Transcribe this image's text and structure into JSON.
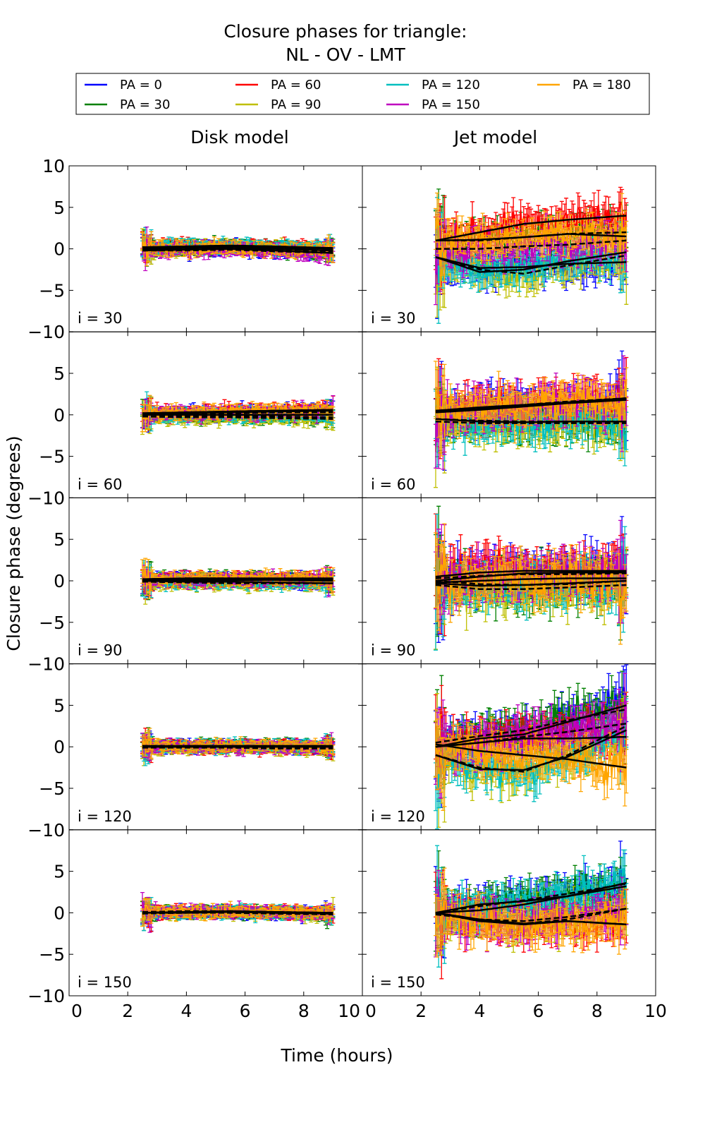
{
  "chart_data": {
    "type": "line",
    "title": [
      "Closure phases for triangle:",
      "NL - OV - LMT"
    ],
    "xlabel": "Time (hours)",
    "ylabel": "Closure phase (degrees)",
    "columns": [
      "Disk model",
      "Jet model"
    ],
    "xlim": [
      0,
      10
    ],
    "ylim": [
      -10,
      10
    ],
    "xticks": [
      0,
      2,
      4,
      6,
      8,
      10
    ],
    "yticks": [
      -10,
      -5,
      0,
      5,
      10
    ],
    "legend": {
      "placement": "top",
      "entries": [
        {
          "label": "PA = 0",
          "color": "#0000ff"
        },
        {
          "label": "PA = 30",
          "color": "#008000"
        },
        {
          "label": "PA = 60",
          "color": "#ff0000"
        },
        {
          "label": "PA = 90",
          "color": "#bfbf00"
        },
        {
          "label": "PA = 120",
          "color": "#00bfbf"
        },
        {
          "label": "PA = 150",
          "color": "#bf00bf"
        },
        {
          "label": "PA = 180",
          "color": "#ffa500"
        }
      ]
    },
    "time_range": [
      2.5,
      9.0
    ],
    "model_knots_x": [
      2.5,
      4,
      5.5,
      7,
      9
    ],
    "rows": [
      {
        "label": "i = 30",
        "disk": {
          "noise": 0.8,
          "models": [
            [
              -0.2,
              -0.1,
              0,
              -0.2,
              -0.5
            ],
            [
              0,
              0.2,
              0.3,
              0.1,
              -0.3
            ],
            [
              0.2,
              0.3,
              0.3,
              0.2,
              0
            ],
            [
              -0.1,
              0,
              0.1,
              0,
              -0.3
            ],
            [
              0.1,
              0.3,
              0.4,
              0.3,
              0.1
            ],
            [
              -0.2,
              -0.2,
              -0.1,
              -0.3,
              -0.5
            ],
            [
              0,
              0.1,
              0.2,
              0,
              -0.2
            ]
          ]
        },
        "jet": {
          "noise": 2.2,
          "models": [
            [
              -1,
              -2.3,
              -2.2,
              -1.8,
              -1.6
            ],
            [
              1,
              1,
              1.4,
              1.8,
              2
            ],
            [
              1,
              2,
              3,
              3.5,
              4
            ],
            [
              -1,
              -2.5,
              -3,
              -2,
              -0.8
            ],
            [
              -1,
              -2.8,
              -2.5,
              -1.5,
              -0.4
            ],
            [
              0,
              0,
              0.3,
              0.5,
              1
            ],
            [
              1,
              1.1,
              1.4,
              1.8,
              1.5
            ]
          ]
        }
      },
      {
        "label": "i = 60",
        "disk": {
          "noise": 0.8,
          "models": [
            [
              0,
              0.2,
              0.3,
              0.4,
              0.5
            ],
            [
              0,
              -0.1,
              -0.1,
              -0.2,
              -0.3
            ],
            [
              0.1,
              0.3,
              0.4,
              0.5,
              0.6
            ],
            [
              -0.2,
              -0.3,
              -0.3,
              -0.4,
              -0.5
            ],
            [
              0,
              0,
              0,
              0,
              0
            ],
            [
              0.1,
              0.2,
              0.2,
              0.3,
              0.3
            ],
            [
              0.2,
              0.3,
              0.4,
              0.5,
              0.6
            ]
          ]
        },
        "jet": {
          "noise": 2.4,
          "models": [
            [
              0.3,
              0.7,
              1.1,
              1.5,
              2
            ],
            [
              -0.5,
              -0.7,
              -0.8,
              -0.8,
              -0.8
            ],
            [
              0.5,
              0.9,
              1.2,
              1.5,
              1.8
            ],
            [
              -0.8,
              -1,
              -1,
              -1,
              -1
            ],
            [
              -0.5,
              -0.8,
              -0.9,
              -0.8,
              -0.8
            ],
            [
              0.4,
              0.8,
              1.2,
              1.6,
              2
            ],
            [
              0.3,
              0.6,
              1,
              1.4,
              1.8
            ]
          ]
        }
      },
      {
        "label": "i = 90",
        "disk": {
          "noise": 0.8,
          "models": [
            [
              0,
              0.2,
              0.2,
              0.1,
              0
            ],
            [
              0.1,
              0.3,
              0.3,
              0.2,
              0.2
            ],
            [
              0,
              0.1,
              0.1,
              0.1,
              0.1
            ],
            [
              -0.1,
              -0.2,
              -0.3,
              -0.3,
              -0.3
            ],
            [
              0,
              -0.1,
              -0.1,
              -0.2,
              -0.3
            ],
            [
              0.1,
              0.2,
              0.2,
              0.2,
              0.2
            ],
            [
              0.2,
              0.3,
              0.3,
              0.3,
              0.3
            ]
          ]
        },
        "jet": {
          "noise": 2.8,
          "models": [
            [
              0,
              0.5,
              0.9,
              1,
              1
            ],
            [
              0,
              -0.4,
              -0.5,
              -0.4,
              0
            ],
            [
              0.5,
              1,
              1.2,
              1.2,
              1.2
            ],
            [
              -0.5,
              -1,
              -1,
              -0.8,
              -0.5
            ],
            [
              -0.3,
              -0.6,
              -0.5,
              -0.3,
              0
            ],
            [
              0.3,
              0.6,
              0.8,
              0.8,
              0.9
            ],
            [
              -0.2,
              0,
              0.2,
              0.3,
              0.3
            ]
          ]
        }
      },
      {
        "label": "i = 120",
        "disk": {
          "noise": 0.7,
          "models": [
            [
              0,
              0.1,
              0.1,
              0,
              0
            ],
            [
              0.1,
              0.1,
              0.1,
              0.1,
              0.1
            ],
            [
              0,
              0,
              0,
              0,
              0
            ],
            [
              -0.1,
              -0.1,
              -0.1,
              -0.2,
              -0.2
            ],
            [
              0,
              0,
              0.1,
              0.1,
              0.1
            ],
            [
              0.1,
              0.1,
              0,
              0,
              0
            ],
            [
              0.1,
              0.1,
              0.1,
              0.1,
              0.1
            ]
          ]
        },
        "jet": {
          "noise": 2.6,
          "models": [
            [
              0,
              1,
              1.5,
              3,
              5
            ],
            [
              0.5,
              1.3,
              2,
              3.2,
              4.5
            ],
            [
              0,
              0.5,
              1,
              1,
              1.2
            ],
            [
              -1,
              -2.5,
              -3,
              -1,
              2.5
            ],
            [
              -1,
              -2.7,
              -2.8,
              -1.2,
              2
            ],
            [
              0,
              0.5,
              1.2,
              1.8,
              2.8
            ],
            [
              0.3,
              -0.5,
              -1,
              -1.5,
              -2.5
            ]
          ]
        }
      },
      {
        "label": "i = 150",
        "disk": {
          "noise": 0.7,
          "models": [
            [
              0,
              0.1,
              0.1,
              0,
              -0.1
            ],
            [
              0.1,
              0.1,
              0.1,
              0,
              -0.1
            ],
            [
              0,
              0.1,
              0.2,
              0.1,
              0
            ],
            [
              -0.1,
              0,
              0,
              -0.1,
              -0.2
            ],
            [
              0,
              0,
              0.1,
              0,
              -0.1
            ],
            [
              0.1,
              0.2,
              0.2,
              0.1,
              0
            ],
            [
              0,
              0.1,
              0.1,
              0.1,
              -0.1
            ]
          ]
        },
        "jet": {
          "noise": 2.3,
          "models": [
            [
              0,
              1,
              1.4,
              2,
              3.2
            ],
            [
              0,
              0.8,
              1.5,
              2.3,
              3.5
            ],
            [
              0,
              -0.8,
              -1.3,
              -1,
              -1.4
            ],
            [
              -0.2,
              -0.8,
              -1,
              -0.5,
              0.5
            ],
            [
              0,
              0.3,
              1,
              2,
              3.6
            ],
            [
              0,
              -1,
              -1.3,
              -0.8,
              0.5
            ],
            [
              0,
              -1,
              -1.4,
              -1,
              -1.4
            ]
          ]
        }
      }
    ]
  }
}
